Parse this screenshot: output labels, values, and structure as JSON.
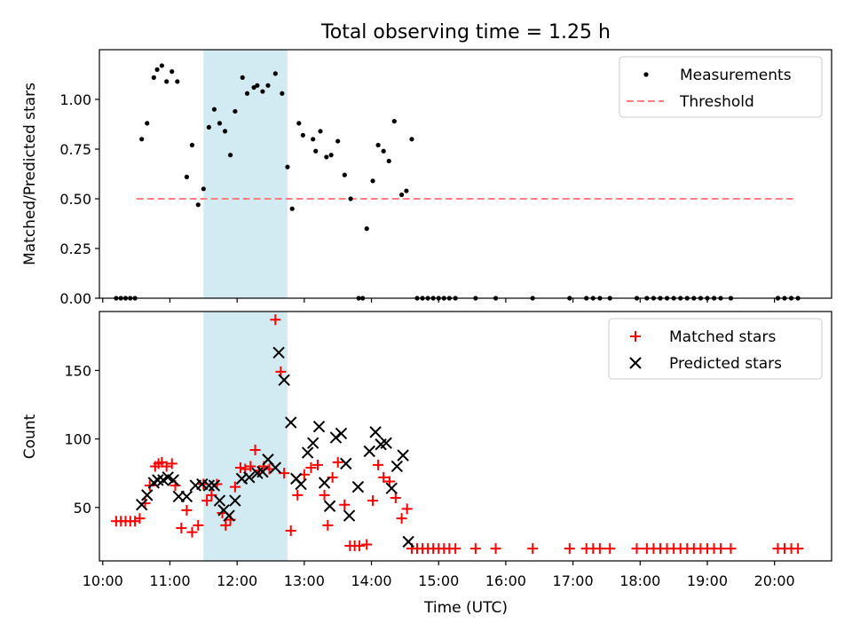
{
  "chart_data": [
    {
      "type": "scatter",
      "title": "Total observing time = 1.25 h",
      "xlabel": "",
      "ylabel": "Matched/Predicted stars",
      "xlim": [
        9.95,
        20.85
      ],
      "ylim": [
        0,
        1.25
      ],
      "yticks": [
        0,
        0.25,
        0.5,
        0.75,
        1.0
      ],
      "ytick_labels": [
        "0.00",
        "0.25",
        "0.50",
        "0.75",
        "1.00"
      ],
      "xticks": [
        10,
        11,
        12,
        13,
        14,
        15,
        16,
        17,
        18,
        19,
        20
      ],
      "shaded_span": [
        11.5,
        12.75
      ],
      "shade_color": "#add8e6",
      "legend": {
        "position": "top-right",
        "entries": [
          "Measurements",
          "Threshold"
        ]
      },
      "threshold": {
        "name": "Threshold",
        "value": 0.5,
        "x": [
          10.5,
          20.3
        ],
        "color": "#ff8080"
      },
      "series": [
        {
          "name": "Measurements",
          "color": "#000000",
          "x": [
            10.2,
            10.27,
            10.34,
            10.41,
            10.48,
            10.58,
            10.66,
            10.76,
            10.81,
            10.88,
            10.95,
            11.03,
            11.11,
            11.25,
            11.33,
            11.42,
            11.5,
            11.58,
            11.66,
            11.74,
            11.82,
            11.9,
            11.97,
            12.08,
            12.15,
            12.25,
            12.3,
            12.38,
            12.46,
            12.57,
            12.67,
            12.75,
            12.82,
            12.92,
            12.98,
            13.13,
            13.17,
            13.24,
            13.33,
            13.4,
            13.5,
            13.6,
            13.69,
            13.81,
            13.87,
            13.93,
            14.02,
            14.1,
            14.18,
            14.26,
            14.34,
            14.45,
            14.52,
            14.6,
            14.68,
            14.76,
            14.84,
            14.92,
            15.0,
            15.08,
            15.16,
            15.25,
            15.55,
            15.85,
            16.4,
            16.95,
            17.2,
            17.3,
            17.4,
            17.55,
            17.95,
            18.1,
            18.2,
            18.3,
            18.4,
            18.5,
            18.6,
            18.7,
            18.8,
            18.9,
            19.0,
            19.1,
            19.2,
            19.35,
            20.05,
            20.15,
            20.25,
            20.35
          ],
          "y": [
            0,
            0,
            0,
            0,
            0,
            0.8,
            0.88,
            1.11,
            1.15,
            1.17,
            1.09,
            1.14,
            1.09,
            0.61,
            0.77,
            0.47,
            0.55,
            0.86,
            0.95,
            0.88,
            0.84,
            0.72,
            0.94,
            1.11,
            1.03,
            1.06,
            1.07,
            1.04,
            1.07,
            1.13,
            1.03,
            0.66,
            0.45,
            0.88,
            0.82,
            0.8,
            0.74,
            0.84,
            0.71,
            0.72,
            0.79,
            0.62,
            0.5,
            0.0,
            0.0,
            0.35,
            0.59,
            0.77,
            0.74,
            0.69,
            0.89,
            0.52,
            0.54,
            0.8,
            0,
            0,
            0,
            0,
            0,
            0,
            0,
            0,
            0,
            0,
            0,
            0,
            0,
            0,
            0,
            0,
            0,
            0,
            0,
            0,
            0,
            0,
            0,
            0,
            0,
            0,
            0,
            0,
            0,
            0,
            0,
            0,
            0,
            0
          ]
        }
      ]
    },
    {
      "type": "scatter",
      "title": "",
      "xlabel": "Time (UTC)",
      "ylabel": "Count",
      "xlim": [
        9.95,
        20.85
      ],
      "ylim": [
        11,
        193
      ],
      "yticks": [
        50,
        100,
        150
      ],
      "ytick_labels": [
        "50",
        "100",
        "150"
      ],
      "xticks": [
        10,
        11,
        12,
        13,
        14,
        15,
        16,
        17,
        18,
        19,
        20
      ],
      "xtick_labels": [
        "10:00",
        "11:00",
        "12:00",
        "13:00",
        "14:00",
        "15:00",
        "16:00",
        "17:00",
        "18:00",
        "19:00",
        "20:00"
      ],
      "shaded_span": [
        11.5,
        12.75
      ],
      "shade_color": "#add8e6",
      "legend": {
        "position": "top-right",
        "entries": [
          "Matched stars",
          "Predicted stars"
        ]
      },
      "series": [
        {
          "name": "Matched stars",
          "marker": "plus",
          "color": "#ff0000",
          "x": [
            10.2,
            10.27,
            10.34,
            10.41,
            10.48,
            10.55,
            10.63,
            10.7,
            10.78,
            10.83,
            10.88,
            10.95,
            11.03,
            11.08,
            11.17,
            11.25,
            11.33,
            11.42,
            11.5,
            11.55,
            11.62,
            11.7,
            11.78,
            11.83,
            11.9,
            11.97,
            12.05,
            12.12,
            12.2,
            12.27,
            12.33,
            12.4,
            12.48,
            12.57,
            12.65,
            12.7,
            12.8,
            12.9,
            13.0,
            13.1,
            13.2,
            13.3,
            13.35,
            13.42,
            13.5,
            13.6,
            13.68,
            13.75,
            13.82,
            13.93,
            14.02,
            14.1,
            14.18,
            14.27,
            14.36,
            14.45,
            14.53,
            14.6,
            14.68,
            14.76,
            14.84,
            14.92,
            15.0,
            15.08,
            15.16,
            15.25,
            15.55,
            15.85,
            16.4,
            16.95,
            17.2,
            17.3,
            17.4,
            17.55,
            17.95,
            18.1,
            18.2,
            18.3,
            18.4,
            18.5,
            18.6,
            18.7,
            18.8,
            18.9,
            19.0,
            19.1,
            19.2,
            19.35,
            20.05,
            20.15,
            20.25,
            20.35
          ],
          "y": [
            40,
            40,
            40,
            40,
            40,
            42,
            53,
            66,
            80,
            82,
            83,
            80,
            82,
            66,
            35,
            48,
            32,
            37,
            67,
            55,
            59,
            67,
            46,
            37,
            41,
            65,
            79,
            78,
            80,
            92,
            77,
            80,
            78,
            187,
            149,
            75,
            33,
            59,
            74,
            79,
            81,
            59,
            37,
            72,
            83,
            52,
            22,
            22,
            22,
            23,
            55,
            81,
            72,
            69,
            57,
            42,
            49,
            20,
            20,
            20,
            20,
            20,
            20,
            20,
            20,
            20,
            20,
            20,
            20,
            20,
            20,
            20,
            20,
            20,
            20,
            20,
            20,
            20,
            20,
            20,
            20,
            20,
            20,
            20,
            20,
            20,
            20,
            20,
            20,
            20,
            20,
            20
          ]
        },
        {
          "name": "Predicted stars",
          "marker": "x",
          "color": "#000000",
          "x": [
            10.58,
            10.66,
            10.76,
            10.82,
            10.9,
            10.97,
            11.05,
            11.13,
            11.25,
            11.38,
            11.48,
            11.58,
            11.66,
            11.74,
            11.8,
            11.88,
            11.97,
            12.07,
            12.18,
            12.3,
            12.38,
            12.46,
            12.57,
            12.62,
            12.7,
            12.8,
            12.88,
            12.95,
            13.05,
            13.13,
            13.22,
            13.3,
            13.38,
            13.47,
            13.55,
            13.62,
            13.67,
            13.8,
            13.97,
            14.06,
            14.14,
            14.22,
            14.3,
            14.38,
            14.47,
            14.55
          ],
          "y": [
            52,
            59,
            68,
            70,
            70,
            72,
            70,
            58,
            58,
            66,
            67,
            66,
            66,
            55,
            48,
            44,
            55,
            71,
            72,
            75,
            76,
            85,
            79,
            163,
            143,
            112,
            71,
            67,
            90,
            97,
            109,
            68,
            51,
            101,
            104,
            82,
            44,
            65,
            91,
            105,
            96,
            97,
            64,
            80,
            88,
            25
          ]
        }
      ]
    }
  ]
}
